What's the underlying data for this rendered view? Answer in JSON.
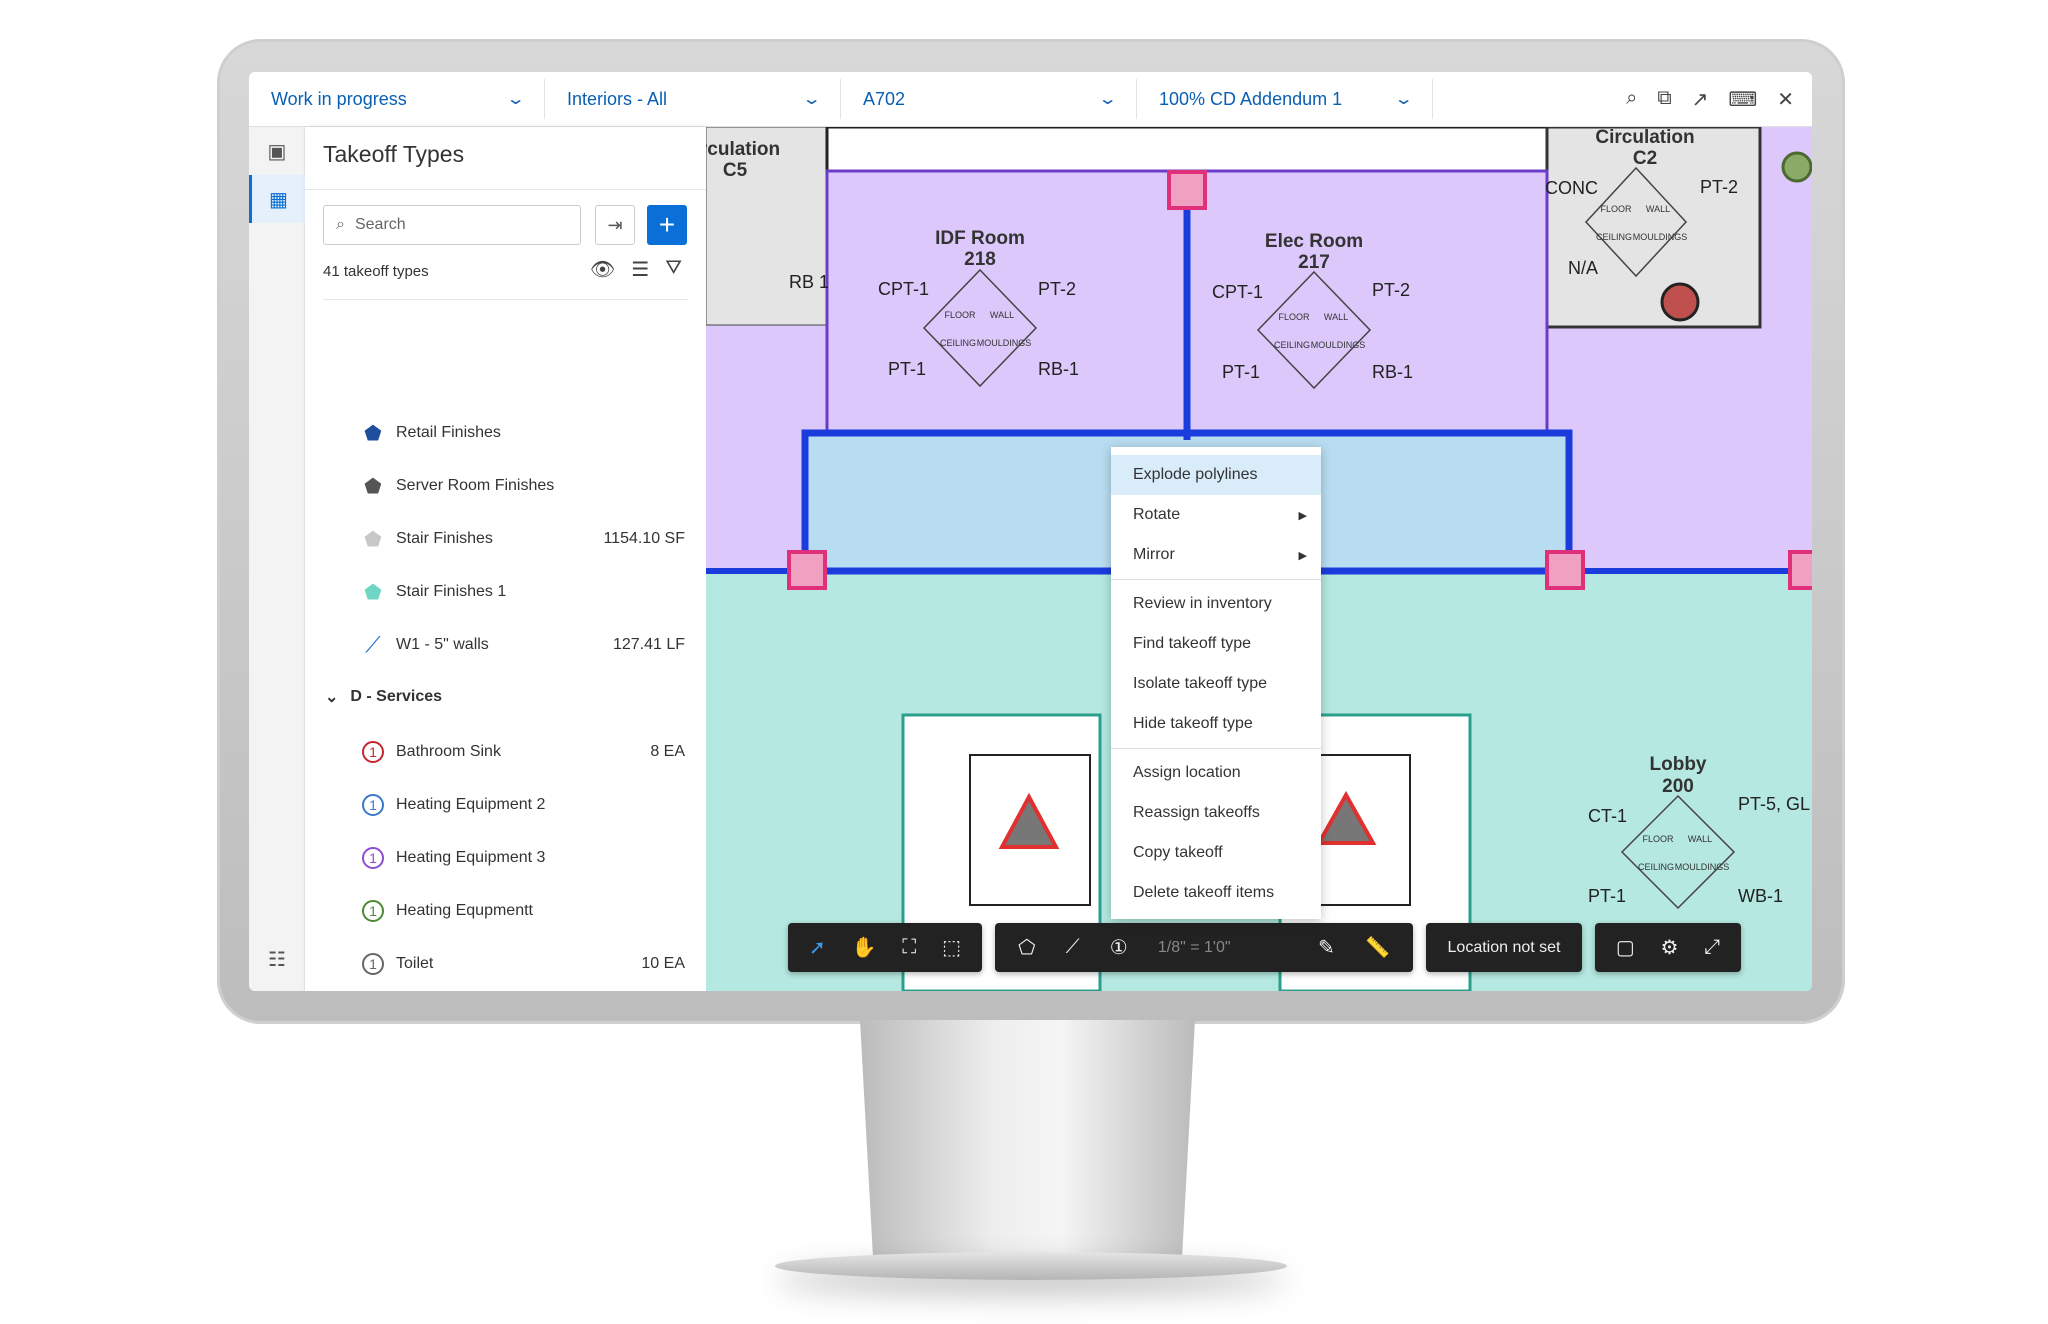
{
  "topbar": {
    "dropdowns": [
      {
        "label": "Work in progress"
      },
      {
        "label": "Interiors - All"
      },
      {
        "label": "A702"
      },
      {
        "label": "100% CD Addendum 1"
      }
    ],
    "icons": [
      "search-icon",
      "compare-icon",
      "share-icon",
      "keyboard-icon",
      "close-icon"
    ]
  },
  "rail": {
    "icons": [
      "sheets-icon",
      "takeoff-icon",
      "table-icon"
    ]
  },
  "panel": {
    "title": "Takeoff Types",
    "search_placeholder": "Search",
    "count": "41 takeoff types",
    "items": [
      {
        "label": "Retail Finishes",
        "qty": "",
        "icon": "pentagon",
        "color": "#1f4e9c"
      },
      {
        "label": "Server Room Finishes",
        "qty": "",
        "icon": "pentagon",
        "color": "#555555"
      },
      {
        "label": "Stair Finishes",
        "qty": "1154.10 SF",
        "icon": "pentagon",
        "color": "#c8c8c8"
      },
      {
        "label": "Stair Finishes 1",
        "qty": "",
        "icon": "pentagon",
        "color": "#6fd6c6"
      },
      {
        "label": "W1 - 5\" walls",
        "qty": "127.41 LF",
        "icon": "polyline",
        "color": "#1f6fc6"
      }
    ],
    "group": {
      "label": "D - Services"
    },
    "group_items": [
      {
        "label": "Bathroom Sink",
        "qty": "8 EA",
        "color": "#c0282e"
      },
      {
        "label": "Heating Equipment 2",
        "qty": "",
        "color": "#3a78c9"
      },
      {
        "label": "Heating Equipment 3",
        "qty": "",
        "color": "#8a4fd0"
      },
      {
        "label": "Heating Equpmentt",
        "qty": "",
        "color": "#4c8a34"
      },
      {
        "label": "Toilet",
        "qty": "10 EA",
        "color": "#666666"
      },
      {
        "label": "Urinal",
        "qty": "4 EA",
        "color": "#b8741a"
      }
    ],
    "count_symbol": "1"
  },
  "drawing": {
    "rooms": [
      {
        "name": "IDF Room",
        "number": "218"
      },
      {
        "name": "Elec Room",
        "number": "217"
      },
      {
        "name": "Lobby",
        "number": "200"
      },
      {
        "name": "Circulation",
        "number": "C2"
      },
      {
        "name": "rculation",
        "number": "C5"
      }
    ],
    "tags": [
      "CPT-1",
      "PT-2",
      "PT-1",
      "RB-1",
      "PT-2",
      "RB 1",
      "N/A",
      "CT-1",
      "PT-5, GL",
      "WB-1",
      "CONC"
    ],
    "finish_labels": {
      "floor": "FLOOR",
      "wall": "WALL",
      "ceiling": "CEILING",
      "mouldings": "MOULDINGS"
    }
  },
  "context_menu": {
    "items": [
      {
        "label": "Explode polylines",
        "highlighted": true
      },
      {
        "label": "Rotate",
        "submenu": true
      },
      {
        "label": "Mirror",
        "submenu": true
      },
      {
        "label": "Review in inventory",
        "sep_before": true
      },
      {
        "label": "Find takeoff type"
      },
      {
        "label": "Isolate takeoff type"
      },
      {
        "label": "Hide takeoff type"
      },
      {
        "label": "Assign location",
        "sep_before": true
      },
      {
        "label": "Reassign takeoffs"
      },
      {
        "label": "Copy takeoff"
      },
      {
        "label": "Delete takeoff items"
      }
    ]
  },
  "toolbar": {
    "scale": "1/8\" = 1'0\"",
    "location": "Location not set"
  },
  "colors": {
    "accent": "#0a6fd6",
    "area_purple": "#dcc8fa",
    "area_teal": "#b4e8e0",
    "selection_blue": "#1a3cdc",
    "handle_pink": "#f0a0c0"
  }
}
